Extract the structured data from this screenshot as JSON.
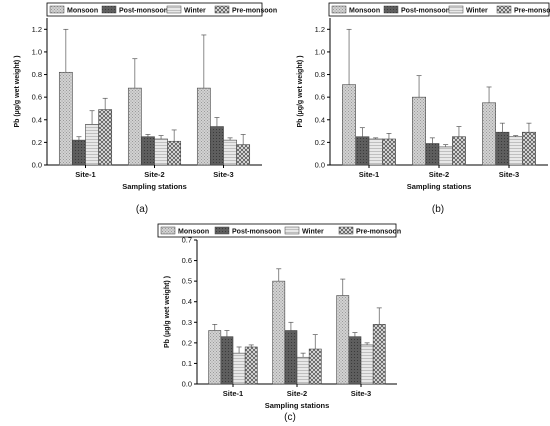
{
  "colors": {
    "Monsoon": "#cfcfcf",
    "Post-monsoon": "#5a5a5a",
    "Winter": "#e6e6e6",
    "Pre-monsoon": "#d8d8d8"
  },
  "chart_data": [
    {
      "type": "bar",
      "panel_label": "(a)",
      "title": "",
      "xlabel": "Sampling stations",
      "ylabel": "Pb (µg/g wet weight) )",
      "categories": [
        "Site-1",
        "Site-2",
        "Site-3"
      ],
      "ylim": [
        0,
        1.3
      ],
      "yticks": [
        "0.0",
        "0.2",
        "0.4",
        "0.6",
        "0.8",
        "1.0",
        "1.2"
      ],
      "legend_position": "top",
      "grid": false,
      "series": [
        {
          "name": "Monsoon",
          "values": [
            0.82,
            0.68,
            0.68
          ],
          "errors": [
            0.38,
            0.26,
            0.47
          ]
        },
        {
          "name": "Post-monsoon",
          "values": [
            0.22,
            0.25,
            0.34
          ],
          "errors": [
            0.03,
            0.02,
            0.08
          ]
        },
        {
          "name": "Winter",
          "values": [
            0.36,
            0.23,
            0.22
          ],
          "errors": [
            0.12,
            0.03,
            0.02
          ]
        },
        {
          "name": "Pre-monsoon",
          "values": [
            0.49,
            0.21,
            0.18
          ],
          "errors": [
            0.1,
            0.1,
            0.09
          ]
        }
      ]
    },
    {
      "type": "bar",
      "panel_label": "(b)",
      "title": "",
      "xlabel": "Sampling stations",
      "ylabel": "Pb (µg/g wet weight) )",
      "categories": [
        "Site-1",
        "Site-2",
        "Site-3"
      ],
      "ylim": [
        0,
        1.3
      ],
      "yticks": [
        "0.0",
        "0.2",
        "0.4",
        "0.6",
        "0.8",
        "1.0",
        "1.2"
      ],
      "legend_position": "top",
      "grid": false,
      "series": [
        {
          "name": "Monsoon",
          "values": [
            0.71,
            0.6,
            0.55
          ],
          "errors": [
            0.49,
            0.19,
            0.14
          ]
        },
        {
          "name": "Post-monsoon",
          "values": [
            0.25,
            0.19,
            0.29
          ],
          "errors": [
            0.08,
            0.05,
            0.08
          ]
        },
        {
          "name": "Winter",
          "values": [
            0.23,
            0.16,
            0.25
          ],
          "errors": [
            0.01,
            0.02,
            0.01
          ]
        },
        {
          "name": "Pre-monsoon",
          "values": [
            0.23,
            0.25,
            0.29
          ],
          "errors": [
            0.05,
            0.09,
            0.08
          ]
        }
      ]
    },
    {
      "type": "bar",
      "panel_label": "(c)",
      "title": "",
      "xlabel": "Sampling stations",
      "ylabel": "Pb (µg/g wet weight) )",
      "categories": [
        "Site-1",
        "Site-2",
        "Site-3"
      ],
      "ylim": [
        0,
        0.7
      ],
      "yticks": [
        "0.0",
        "0.1",
        "0.2",
        "0.3",
        "0.4",
        "0.5",
        "0.6",
        "0.7"
      ],
      "legend_position": "top",
      "grid": false,
      "series": [
        {
          "name": "Monsoon",
          "values": [
            0.26,
            0.5,
            0.43
          ],
          "errors": [
            0.03,
            0.06,
            0.08
          ]
        },
        {
          "name": "Post-monsoon",
          "values": [
            0.23,
            0.26,
            0.23
          ],
          "errors": [
            0.03,
            0.04,
            0.02
          ]
        },
        {
          "name": "Winter",
          "values": [
            0.15,
            0.13,
            0.19
          ],
          "errors": [
            0.03,
            0.02,
            0.01
          ]
        },
        {
          "name": "Pre-monsoon",
          "values": [
            0.18,
            0.17,
            0.29
          ],
          "errors": [
            0.01,
            0.07,
            0.08
          ]
        }
      ]
    }
  ]
}
